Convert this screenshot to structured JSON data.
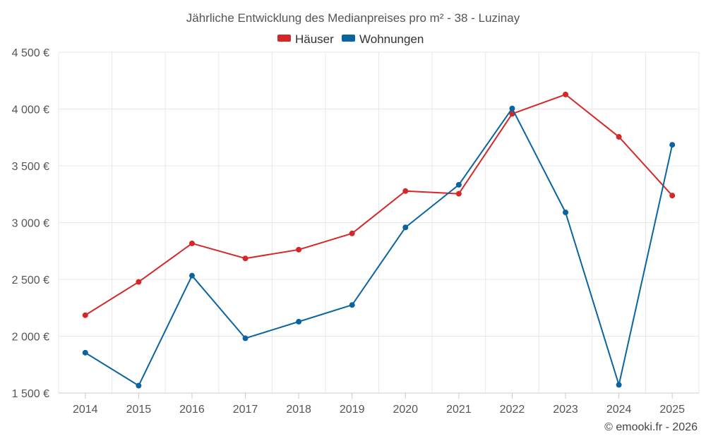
{
  "chart_data": {
    "type": "line",
    "title": "Jährliche Entwicklung des Medianpreises pro m² - 38 - Luzinay",
    "categories": [
      "2014",
      "2015",
      "2016",
      "2017",
      "2018",
      "2019",
      "2020",
      "2021",
      "2022",
      "2023",
      "2024",
      "2025"
    ],
    "series": [
      {
        "name": "Häuser",
        "color": "#d62728",
        "values": [
          2185,
          2478,
          2817,
          2685,
          2762,
          2905,
          3278,
          3254,
          3958,
          4128,
          3755,
          3238
        ]
      },
      {
        "name": "Wohnungen",
        "color": "#0a64a0",
        "values": [
          1855,
          1565,
          2533,
          1982,
          2128,
          2275,
          2958,
          3333,
          4005,
          3090,
          1572,
          3685
        ]
      }
    ],
    "ylim": [
      1500,
      4500
    ],
    "yticks": [
      1500,
      2000,
      2500,
      3000,
      3500,
      4000,
      4500
    ],
    "ytick_labels": [
      "1 500 €",
      "2 000 €",
      "2 500 €",
      "3 000 €",
      "3 500 €",
      "4 000 €",
      "4 500 €"
    ],
    "xlabel": "",
    "ylabel": "",
    "legend": "top-center",
    "grid": true
  },
  "credit": "© emooki.fr - 2026"
}
